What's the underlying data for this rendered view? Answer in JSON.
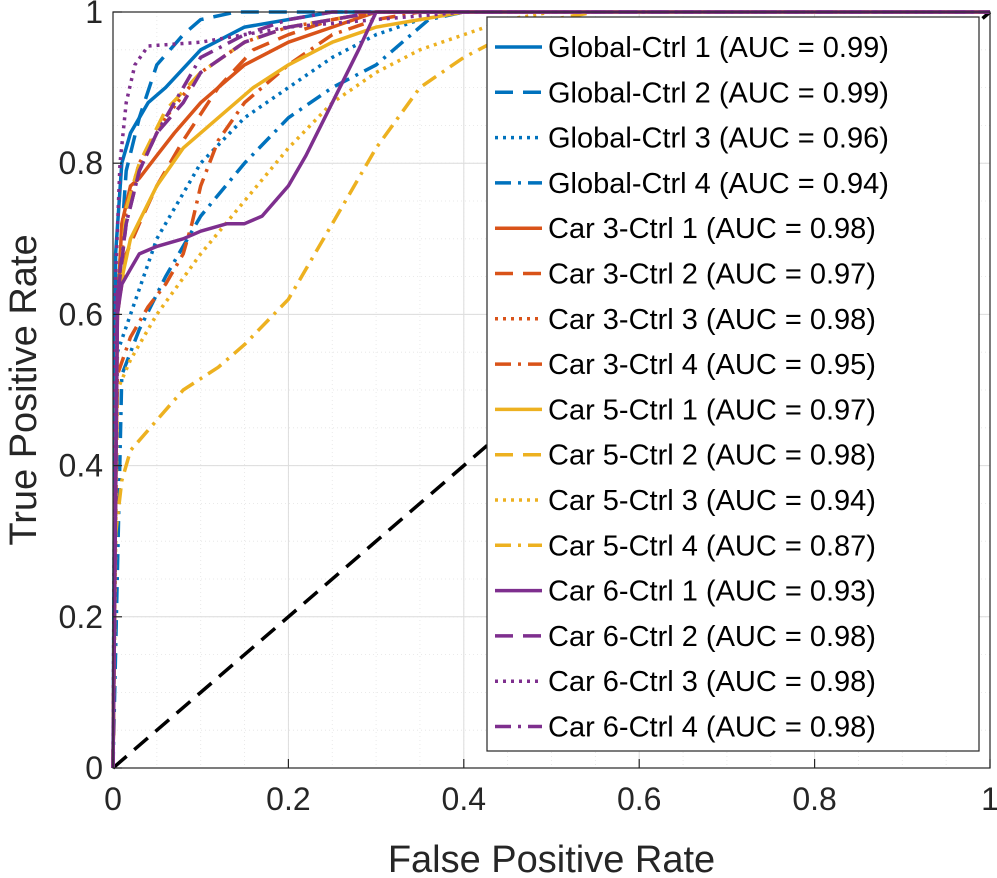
{
  "chart_data": {
    "type": "line",
    "title": "",
    "xlabel": "False Positive Rate",
    "ylabel": "True Positive Rate",
    "xlim": [
      0,
      1
    ],
    "ylim": [
      0,
      1
    ],
    "xticks": [
      0,
      0.2,
      0.4,
      0.6,
      0.8,
      1
    ],
    "yticks": [
      0,
      0.2,
      0.4,
      0.6,
      0.8,
      1
    ],
    "xtick_labels": [
      "0",
      "0.2",
      "0.4",
      "0.6",
      "0.8",
      "1"
    ],
    "ytick_labels": [
      "0",
      "0.2",
      "0.4",
      "0.6",
      "0.8",
      "1"
    ],
    "grid": true,
    "legend_position": "top-right",
    "reference_line": {
      "name": "chance",
      "color": "#000000",
      "style": "dashed",
      "x": [
        0,
        1
      ],
      "y": [
        0,
        1
      ]
    },
    "series": [
      {
        "name": "Global-Ctrl 1 (AUC = 0.99)",
        "color": "#0072BD",
        "style": "solid",
        "x": [
          0,
          0.003,
          0.01,
          0.02,
          0.04,
          0.06,
          0.1,
          0.15,
          0.25,
          1
        ],
        "y": [
          0,
          0.68,
          0.8,
          0.84,
          0.88,
          0.9,
          0.95,
          0.98,
          1,
          1
        ]
      },
      {
        "name": "Global-Ctrl 2 (AUC = 0.99)",
        "color": "#0072BD",
        "style": "dashed",
        "x": [
          0,
          0.005,
          0.015,
          0.03,
          0.05,
          0.08,
          0.1,
          0.14,
          1
        ],
        "y": [
          0,
          0.62,
          0.79,
          0.86,
          0.93,
          0.97,
          0.99,
          1,
          1
        ]
      },
      {
        "name": "Global-Ctrl 3 (AUC = 0.96)",
        "color": "#0072BD",
        "style": "dotted",
        "x": [
          0,
          0.005,
          0.02,
          0.05,
          0.1,
          0.15,
          0.2,
          0.25,
          0.3,
          0.35,
          0.4,
          1
        ],
        "y": [
          0,
          0.55,
          0.6,
          0.7,
          0.8,
          0.86,
          0.9,
          0.94,
          0.97,
          0.99,
          1,
          1
        ]
      },
      {
        "name": "Global-Ctrl 4 (AUC = 0.94)",
        "color": "#0072BD",
        "style": "dashdot",
        "x": [
          0,
          0.01,
          0.03,
          0.06,
          0.1,
          0.15,
          0.2,
          0.25,
          0.3,
          0.33,
          0.36,
          0.4,
          1
        ],
        "y": [
          0,
          0.52,
          0.58,
          0.65,
          0.73,
          0.8,
          0.86,
          0.9,
          0.93,
          0.96,
          0.99,
          1,
          1
        ]
      },
      {
        "name": "Car 3-Ctrl 1 (AUC = 0.98)",
        "color": "#D95319",
        "style": "solid",
        "x": [
          0,
          0.005,
          0.01,
          0.02,
          0.03,
          0.05,
          0.07,
          0.1,
          0.15,
          0.2,
          0.25,
          0.3,
          1
        ],
        "y": [
          0,
          0.6,
          0.72,
          0.77,
          0.78,
          0.81,
          0.84,
          0.88,
          0.93,
          0.96,
          0.98,
          1,
          1
        ]
      },
      {
        "name": "Car 3-Ctrl 2 (AUC = 0.97)",
        "color": "#D95319",
        "style": "dashed",
        "x": [
          0,
          0.005,
          0.015,
          0.03,
          0.05,
          0.08,
          0.12,
          0.16,
          0.2,
          0.25,
          0.3,
          1
        ],
        "y": [
          0,
          0.6,
          0.68,
          0.72,
          0.77,
          0.83,
          0.9,
          0.95,
          0.97,
          0.99,
          1,
          1
        ]
      },
      {
        "name": "Car 3-Ctrl 3 (AUC = 0.98)",
        "color": "#D95319",
        "style": "dotted",
        "x": [
          0,
          0.005,
          0.015,
          0.03,
          0.06,
          0.1,
          0.15,
          0.2,
          0.25,
          0.3,
          1
        ],
        "y": [
          0,
          0.62,
          0.74,
          0.8,
          0.86,
          0.92,
          0.96,
          0.98,
          0.99,
          1,
          1
        ]
      },
      {
        "name": "Car 3-Ctrl 4 (AUC = 0.95)",
        "color": "#D95319",
        "style": "dashdot",
        "x": [
          0,
          0.005,
          0.02,
          0.04,
          0.06,
          0.08,
          0.09,
          0.1,
          0.12,
          0.15,
          0.2,
          0.25,
          0.3,
          0.35,
          1
        ],
        "y": [
          0,
          0.52,
          0.57,
          0.61,
          0.64,
          0.68,
          0.72,
          0.77,
          0.83,
          0.88,
          0.93,
          0.97,
          0.99,
          1,
          1
        ]
      },
      {
        "name": "Car 5-Ctrl 1 (AUC = 0.97)",
        "color": "#EDB120",
        "style": "solid",
        "x": [
          0,
          0.005,
          0.02,
          0.05,
          0.08,
          0.12,
          0.16,
          0.2,
          0.25,
          0.3,
          0.35,
          0.4,
          1
        ],
        "y": [
          0,
          0.62,
          0.7,
          0.77,
          0.82,
          0.86,
          0.9,
          0.93,
          0.96,
          0.98,
          0.99,
          1,
          1
        ]
      },
      {
        "name": "Car 5-Ctrl 2 (AUC = 0.98)",
        "color": "#EDB120",
        "style": "dashed",
        "x": [
          0,
          0.005,
          0.015,
          0.03,
          0.06,
          0.1,
          0.15,
          0.2,
          0.25,
          0.3,
          1
        ],
        "y": [
          0,
          0.6,
          0.74,
          0.8,
          0.87,
          0.92,
          0.96,
          0.98,
          0.99,
          1,
          1
        ]
      },
      {
        "name": "Car 5-Ctrl 3 (AUC = 0.94)",
        "color": "#EDB120",
        "style": "dotted",
        "x": [
          0,
          0.005,
          0.02,
          0.05,
          0.1,
          0.15,
          0.2,
          0.25,
          0.3,
          0.35,
          0.4,
          0.45,
          0.5,
          1
        ],
        "y": [
          0,
          0.5,
          0.54,
          0.6,
          0.68,
          0.75,
          0.82,
          0.88,
          0.92,
          0.95,
          0.97,
          0.99,
          1,
          1
        ]
      },
      {
        "name": "Car 5-Ctrl 4 (AUC = 0.87)",
        "color": "#EDB120",
        "style": "dashdot",
        "x": [
          0,
          0.002,
          0.01,
          0.02,
          0.05,
          0.08,
          0.12,
          0.15,
          0.2,
          0.25,
          0.3,
          0.35,
          0.4,
          0.45,
          0.5,
          0.55,
          1
        ],
        "y": [
          0,
          0.3,
          0.38,
          0.42,
          0.46,
          0.5,
          0.53,
          0.56,
          0.62,
          0.72,
          0.82,
          0.9,
          0.94,
          0.97,
          0.99,
          1,
          1
        ]
      },
      {
        "name": "Car 6-Ctrl 1 (AUC = 0.93)",
        "color": "#7E2F8E",
        "style": "solid",
        "x": [
          0,
          0.005,
          0.01,
          0.02,
          0.03,
          0.05,
          0.08,
          0.1,
          0.13,
          0.15,
          0.17,
          0.2,
          0.22,
          0.25,
          0.28,
          0.3,
          1
        ],
        "y": [
          0,
          0.6,
          0.64,
          0.66,
          0.68,
          0.69,
          0.7,
          0.71,
          0.72,
          0.72,
          0.73,
          0.77,
          0.81,
          0.88,
          0.95,
          1,
          1
        ]
      },
      {
        "name": "Car 6-Ctrl 2 (AUC = 0.98)",
        "color": "#7E2F8E",
        "style": "dashed",
        "x": [
          0,
          0.005,
          0.015,
          0.03,
          0.05,
          0.08,
          0.1,
          0.15,
          0.2,
          0.25,
          0.3,
          1
        ],
        "y": [
          0,
          0.62,
          0.72,
          0.79,
          0.84,
          0.88,
          0.92,
          0.96,
          0.98,
          0.99,
          1,
          1
        ]
      },
      {
        "name": "Car 6-Ctrl 3 (AUC = 0.98)",
        "color": "#7E2F8E",
        "style": "dotted",
        "x": [
          0,
          0.003,
          0.008,
          0.015,
          0.025,
          0.04,
          0.1,
          0.2,
          0.3,
          0.4,
          0.5,
          1
        ],
        "y": [
          0,
          0.65,
          0.8,
          0.88,
          0.93,
          0.955,
          0.96,
          0.98,
          0.99,
          1,
          1,
          1
        ]
      },
      {
        "name": "Car 6-Ctrl 4 (AUC = 0.98)",
        "color": "#7E2F8E",
        "style": "dashdot",
        "x": [
          0,
          0.005,
          0.015,
          0.03,
          0.05,
          0.08,
          0.1,
          0.15,
          0.2,
          0.25,
          0.3,
          1
        ],
        "y": [
          0,
          0.63,
          0.72,
          0.79,
          0.84,
          0.9,
          0.94,
          0.97,
          0.99,
          1,
          1,
          1
        ]
      }
    ]
  }
}
